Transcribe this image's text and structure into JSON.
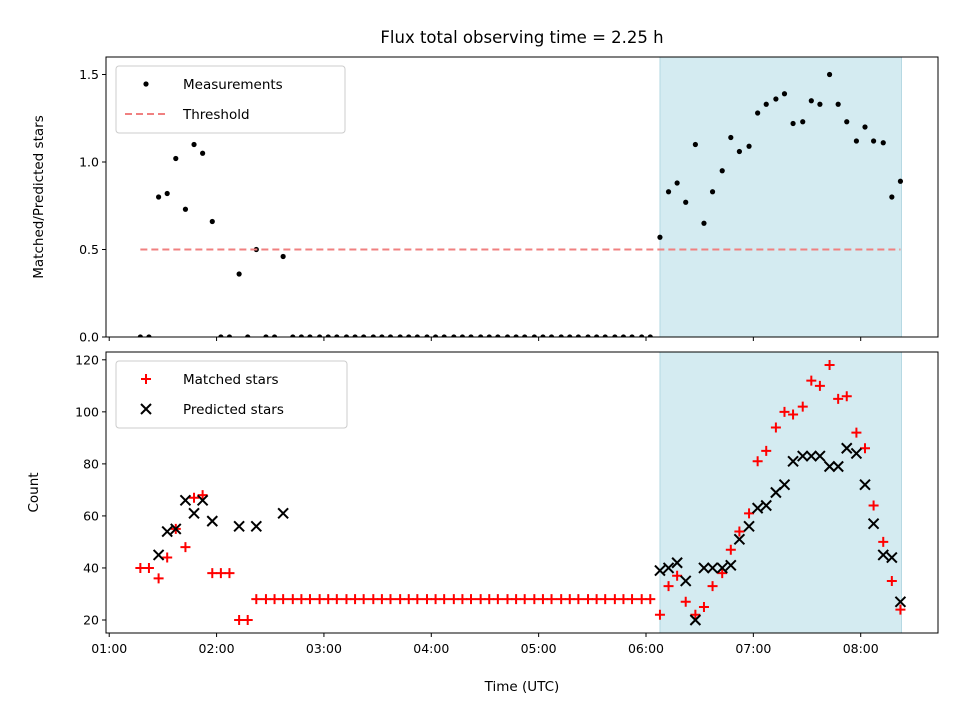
{
  "chart_data": {
    "title": "Flux total observing time = 2.25 h",
    "xlabel": "Time (UTC)",
    "x_unit": "hours (UTC)",
    "xlim": [
      0.97,
      8.72
    ],
    "xticks": [
      1,
      2,
      3,
      4,
      5,
      6,
      7,
      8
    ],
    "xtick_labels": [
      "01:00",
      "02:00",
      "03:00",
      "04:00",
      "05:00",
      "06:00",
      "07:00",
      "08:00"
    ],
    "shaded_region": {
      "x_start": 6.13,
      "x_end": 8.38,
      "color": "#d4ebf1"
    },
    "panels": [
      {
        "type": "scatter",
        "ylabel": "Matched/Predicted stars",
        "ylim": [
          0,
          1.6
        ],
        "yticks": [
          0.0,
          0.5,
          1.0,
          1.5
        ],
        "ytick_labels": [
          "0.0",
          "0.5",
          "1.0",
          "1.5"
        ],
        "legend_position": "top-left",
        "series": [
          {
            "name": "Measurements",
            "marker": "dot",
            "color": "#000000",
            "points": [
              [
                1.29,
                0
              ],
              [
                1.37,
                0
              ],
              [
                1.46,
                0.8
              ],
              [
                1.54,
                0.82
              ],
              [
                1.62,
                1.02
              ],
              [
                1.71,
                0.73
              ],
              [
                1.79,
                1.1
              ],
              [
                1.87,
                1.05
              ],
              [
                1.96,
                0.66
              ],
              [
                2.04,
                0
              ],
              [
                2.12,
                0
              ],
              [
                2.21,
                0.36
              ],
              [
                2.29,
                0
              ],
              [
                2.37,
                0.5
              ],
              [
                2.46,
                0
              ],
              [
                2.54,
                0
              ],
              [
                2.62,
                0.46
              ],
              [
                2.71,
                0
              ],
              [
                2.79,
                0
              ],
              [
                2.87,
                0
              ],
              [
                2.96,
                0
              ],
              [
                3.04,
                0
              ],
              [
                3.12,
                0
              ],
              [
                3.21,
                0
              ],
              [
                3.29,
                0
              ],
              [
                3.37,
                0
              ],
              [
                3.46,
                0
              ],
              [
                3.54,
                0
              ],
              [
                3.62,
                0
              ],
              [
                3.71,
                0
              ],
              [
                3.79,
                0
              ],
              [
                3.87,
                0
              ],
              [
                3.96,
                0
              ],
              [
                4.04,
                0
              ],
              [
                4.12,
                0
              ],
              [
                4.21,
                0
              ],
              [
                4.29,
                0
              ],
              [
                4.37,
                0
              ],
              [
                4.46,
                0
              ],
              [
                4.54,
                0
              ],
              [
                4.62,
                0
              ],
              [
                4.71,
                0
              ],
              [
                4.79,
                0
              ],
              [
                4.87,
                0
              ],
              [
                4.96,
                0
              ],
              [
                5.04,
                0
              ],
              [
                5.12,
                0
              ],
              [
                5.21,
                0
              ],
              [
                5.29,
                0
              ],
              [
                5.37,
                0
              ],
              [
                5.46,
                0
              ],
              [
                5.54,
                0
              ],
              [
                5.62,
                0
              ],
              [
                5.71,
                0
              ],
              [
                5.79,
                0
              ],
              [
                5.87,
                0
              ],
              [
                5.96,
                0
              ],
              [
                6.04,
                0
              ],
              [
                6.13,
                0.57
              ],
              [
                6.21,
                0.83
              ],
              [
                6.29,
                0.88
              ],
              [
                6.37,
                0.77
              ],
              [
                6.46,
                1.1
              ],
              [
                6.54,
                0.65
              ],
              [
                6.62,
                0.83
              ],
              [
                6.71,
                0.95
              ],
              [
                6.79,
                1.14
              ],
              [
                6.87,
                1.06
              ],
              [
                6.96,
                1.09
              ],
              [
                7.04,
                1.28
              ],
              [
                7.12,
                1.33
              ],
              [
                7.21,
                1.36
              ],
              [
                7.29,
                1.39
              ],
              [
                7.37,
                1.22
              ],
              [
                7.46,
                1.23
              ],
              [
                7.54,
                1.35
              ],
              [
                7.62,
                1.33
              ],
              [
                7.71,
                1.5
              ],
              [
                7.79,
                1.33
              ],
              [
                7.87,
                1.23
              ],
              [
                7.96,
                1.12
              ],
              [
                8.04,
                1.2
              ],
              [
                8.12,
                1.12
              ],
              [
                8.21,
                1.11
              ],
              [
                8.29,
                0.8
              ],
              [
                8.37,
                0.89
              ]
            ]
          },
          {
            "name": "Threshold",
            "marker": "dashed-line",
            "color": "#f08080",
            "points": [
              [
                1.29,
                0.5
              ],
              [
                8.37,
                0.5
              ]
            ]
          }
        ]
      },
      {
        "type": "scatter",
        "ylabel": "Count",
        "ylim": [
          15,
          123
        ],
        "yticks": [
          20,
          40,
          60,
          80,
          100,
          120
        ],
        "ytick_labels": [
          "20",
          "40",
          "60",
          "80",
          "100",
          "120"
        ],
        "legend_position": "top-left",
        "series": [
          {
            "name": "Matched stars",
            "marker": "plus",
            "color": "#ff0000",
            "points": [
              [
                1.29,
                40
              ],
              [
                1.37,
                40
              ],
              [
                1.46,
                36
              ],
              [
                1.54,
                44
              ],
              [
                1.62,
                55
              ],
              [
                1.71,
                48
              ],
              [
                1.79,
                67
              ],
              [
                1.87,
                68
              ],
              [
                1.96,
                38
              ],
              [
                2.04,
                38
              ],
              [
                2.12,
                38
              ],
              [
                2.21,
                20
              ],
              [
                2.29,
                20
              ],
              [
                2.37,
                28
              ],
              [
                2.46,
                28
              ],
              [
                2.54,
                28
              ],
              [
                2.62,
                28
              ],
              [
                2.71,
                28
              ],
              [
                2.79,
                28
              ],
              [
                2.87,
                28
              ],
              [
                2.96,
                28
              ],
              [
                3.04,
                28
              ],
              [
                3.12,
                28
              ],
              [
                3.21,
                28
              ],
              [
                3.29,
                28
              ],
              [
                3.37,
                28
              ],
              [
                3.46,
                28
              ],
              [
                3.54,
                28
              ],
              [
                3.62,
                28
              ],
              [
                3.71,
                28
              ],
              [
                3.79,
                28
              ],
              [
                3.87,
                28
              ],
              [
                3.96,
                28
              ],
              [
                4.04,
                28
              ],
              [
                4.12,
                28
              ],
              [
                4.21,
                28
              ],
              [
                4.29,
                28
              ],
              [
                4.37,
                28
              ],
              [
                4.46,
                28
              ],
              [
                4.54,
                28
              ],
              [
                4.62,
                28
              ],
              [
                4.71,
                28
              ],
              [
                4.79,
                28
              ],
              [
                4.87,
                28
              ],
              [
                4.96,
                28
              ],
              [
                5.04,
                28
              ],
              [
                5.12,
                28
              ],
              [
                5.21,
                28
              ],
              [
                5.29,
                28
              ],
              [
                5.37,
                28
              ],
              [
                5.46,
                28
              ],
              [
                5.54,
                28
              ],
              [
                5.62,
                28
              ],
              [
                5.71,
                28
              ],
              [
                5.79,
                28
              ],
              [
                5.87,
                28
              ],
              [
                5.96,
                28
              ],
              [
                6.04,
                28
              ],
              [
                6.13,
                22
              ],
              [
                6.21,
                33
              ],
              [
                6.29,
                37
              ],
              [
                6.37,
                27
              ],
              [
                6.46,
                22
              ],
              [
                6.54,
                25
              ],
              [
                6.62,
                33
              ],
              [
                6.71,
                38
              ],
              [
                6.79,
                47
              ],
              [
                6.87,
                54
              ],
              [
                6.96,
                61
              ],
              [
                7.04,
                81
              ],
              [
                7.12,
                85
              ],
              [
                7.21,
                94
              ],
              [
                7.29,
                100
              ],
              [
                7.37,
                99
              ],
              [
                7.46,
                102
              ],
              [
                7.54,
                112
              ],
              [
                7.62,
                110
              ],
              [
                7.71,
                118
              ],
              [
                7.79,
                105
              ],
              [
                7.87,
                106
              ],
              [
                7.96,
                92
              ],
              [
                8.04,
                86
              ],
              [
                8.12,
                64
              ],
              [
                8.21,
                50
              ],
              [
                8.29,
                35
              ],
              [
                8.37,
                24
              ]
            ]
          },
          {
            "name": "Predicted stars",
            "marker": "x",
            "color": "#000000",
            "points": [
              [
                1.46,
                45
              ],
              [
                1.54,
                54
              ],
              [
                1.62,
                55
              ],
              [
                1.71,
                66
              ],
              [
                1.79,
                61
              ],
              [
                1.87,
                66
              ],
              [
                1.96,
                58
              ],
              [
                2.21,
                56
              ],
              [
                2.37,
                56
              ],
              [
                2.62,
                61
              ],
              [
                6.13,
                39
              ],
              [
                6.21,
                40
              ],
              [
                6.29,
                42
              ],
              [
                6.37,
                35
              ],
              [
                6.46,
                20
              ],
              [
                6.54,
                40
              ],
              [
                6.62,
                40
              ],
              [
                6.71,
                40
              ],
              [
                6.79,
                41
              ],
              [
                6.87,
                51
              ],
              [
                6.96,
                56
              ],
              [
                7.04,
                63
              ],
              [
                7.12,
                64
              ],
              [
                7.21,
                69
              ],
              [
                7.29,
                72
              ],
              [
                7.37,
                81
              ],
              [
                7.46,
                83
              ],
              [
                7.54,
                83
              ],
              [
                7.62,
                83
              ],
              [
                7.71,
                79
              ],
              [
                7.79,
                79
              ],
              [
                7.87,
                86
              ],
              [
                7.96,
                84
              ],
              [
                8.04,
                72
              ],
              [
                8.12,
                57
              ],
              [
                8.21,
                45
              ],
              [
                8.29,
                44
              ],
              [
                8.37,
                27
              ]
            ]
          }
        ]
      }
    ]
  }
}
